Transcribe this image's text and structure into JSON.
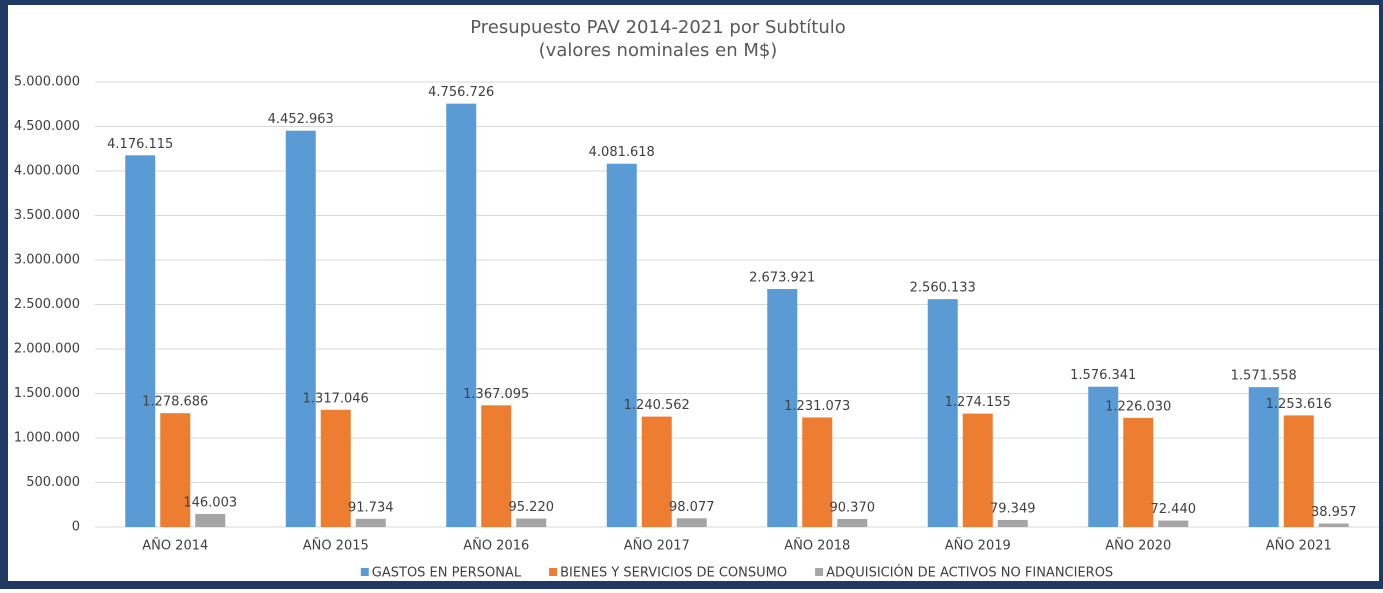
{
  "chart_data": {
    "type": "bar",
    "title": [
      "Presupuesto PAV 2014-2021 por Subtítulo",
      "(valores nominales en M$)"
    ],
    "categories": [
      "AÑO 2014",
      "AÑO 2015",
      "AÑO 2016",
      "AÑO 2017",
      "AÑO 2018",
      "AÑO 2019",
      "AÑO 2020",
      "AÑO 2021"
    ],
    "series": [
      {
        "name": "GASTOS EN PERSONAL",
        "color": "#5b9bd5",
        "values": [
          4176115,
          4452963,
          4756726,
          4081618,
          2673921,
          2560133,
          1576341,
          1571558
        ],
        "value_labels": [
          "4.176.115",
          "4.452.963",
          "4.756.726",
          "4.081.618",
          "2.673.921",
          "2.560.133",
          "1.576.341",
          "1.571.558"
        ]
      },
      {
        "name": "BIENES Y SERVICIOS DE CONSUMO",
        "color": "#ed7d31",
        "values": [
          1278686,
          1317046,
          1367095,
          1240562,
          1231073,
          1274155,
          1226030,
          1253616
        ],
        "value_labels": [
          "1.278.686",
          "1.317.046",
          "1.367.095",
          "1.240.562",
          "1.231.073",
          "1.274.155",
          "1.226.030",
          "1.253.616"
        ]
      },
      {
        "name": "ADQUISICIÓN DE ACTIVOS NO FINANCIEROS",
        "color": "#a5a5a5",
        "values": [
          146003,
          91734,
          95220,
          98077,
          90370,
          79349,
          72440,
          38957
        ],
        "value_labels": [
          "146.003",
          "91.734",
          "95.220",
          "98.077",
          "90.370",
          "79.349",
          "72.440",
          "38.957"
        ]
      }
    ],
    "ylim": [
      0,
      5000000
    ],
    "yticks": [
      0,
      {
        "value": 500000,
        "label": "500.000"
      },
      {
        "value": 1000000,
        "label": "1.000.000"
      },
      {
        "value": 1500000,
        "label": "1.500.000"
      },
      {
        "value": 2000000,
        "label": "2.000.000"
      },
      {
        "value": 2500000,
        "label": "2.500.000"
      },
      {
        "value": 3000000,
        "label": "3.000.000"
      },
      {
        "value": 3500000,
        "label": "3.500.000"
      },
      {
        "value": 4000000,
        "label": "4.000.000"
      },
      {
        "value": 4500000,
        "label": "4.500.000"
      },
      {
        "value": 5000000,
        "label": "5.000.000"
      }
    ],
    "grid": true,
    "legend": "bottom"
  }
}
